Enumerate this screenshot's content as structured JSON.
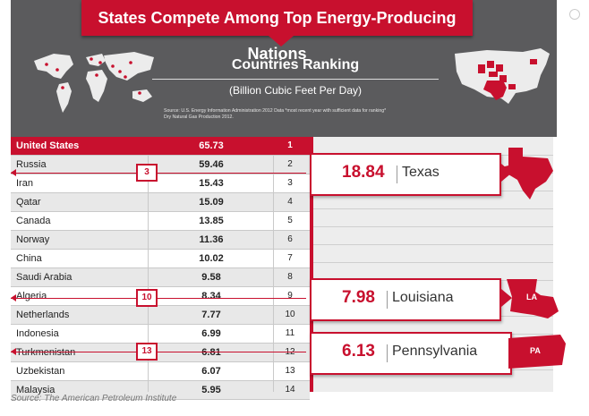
{
  "header": {
    "title": "States Compete Among Top Energy-Producing Nations",
    "ranking_title": "Countries Ranking",
    "ranking_subtitle": "(Billion Cubic Feet Per Day)",
    "source_note_1": "Source: U.S. Energy Information Administration 2012 Data *most recent year with sufficient data for ranking*",
    "source_note_2": "Dry Natural Gas Production 2012."
  },
  "chart_data": {
    "type": "table",
    "title": "Countries Ranking",
    "unit": "Billion Cubic Feet Per Day",
    "rows": [
      {
        "country": "United States",
        "value": "65.73",
        "rank": "1"
      },
      {
        "country": "Russia",
        "value": "59.46",
        "rank": "2"
      },
      {
        "country": "Iran",
        "value": "15.43",
        "rank": "3"
      },
      {
        "country": "Qatar",
        "value": "15.09",
        "rank": "4"
      },
      {
        "country": "Canada",
        "value": "13.85",
        "rank": "5"
      },
      {
        "country": "Norway",
        "value": "11.36",
        "rank": "6"
      },
      {
        "country": "China",
        "value": "10.02",
        "rank": "7"
      },
      {
        "country": "Saudi Arabia",
        "value": "9.58",
        "rank": "8"
      },
      {
        "country": "Algeria",
        "value": "8.34",
        "rank": "9"
      },
      {
        "country": "Netherlands",
        "value": "7.77",
        "rank": "10"
      },
      {
        "country": "Indonesia",
        "value": "6.99",
        "rank": "11"
      },
      {
        "country": "Turkmenistan",
        "value": "6.81",
        "rank": "12"
      },
      {
        "country": "Uzbekistan",
        "value": "6.07",
        "rank": "13"
      },
      {
        "country": "Malaysia",
        "value": "5.95",
        "rank": "14"
      }
    ],
    "state_callouts": [
      {
        "value": "18.84",
        "state": "Texas",
        "state_abbr": "",
        "inserted_rank": "3"
      },
      {
        "value": "7.98",
        "state": "Louisiana",
        "state_abbr": "LA",
        "inserted_rank": "10"
      },
      {
        "value": "6.13",
        "state": "Pennsylvania",
        "state_abbr": "PA",
        "inserted_rank": "13"
      }
    ]
  },
  "caption": "Source: The American Petroleum Institute",
  "colors": {
    "accent": "#c8102e",
    "header_bg": "#5b5b5d"
  }
}
